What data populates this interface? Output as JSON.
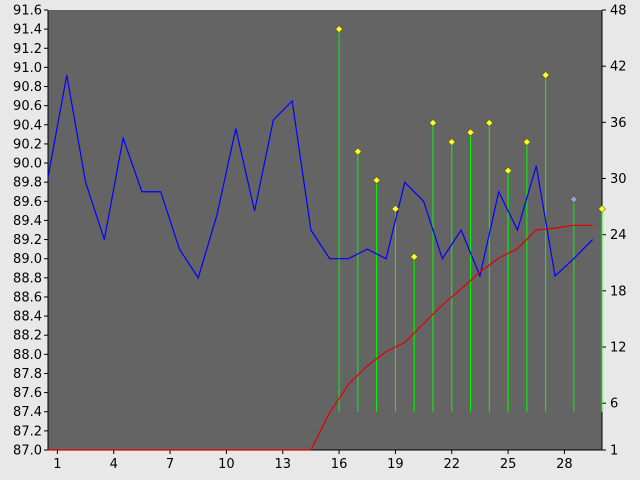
{
  "chart_data": {
    "type": "line",
    "title": "",
    "xlabel": "",
    "ylabel": "",
    "xlim": [
      0.5,
      30
    ],
    "ylim_left": [
      87.0,
      91.6
    ],
    "ylim_right": [
      1,
      48
    ],
    "x_tick_labels": [
      "1",
      "4",
      "7",
      "10",
      "13",
      "16",
      "19",
      "22",
      "25",
      "28"
    ],
    "left_tick_labels": [
      "91.6",
      "91.4",
      "91.2",
      "91.0",
      "90.8",
      "90.6",
      "90.4",
      "90.2",
      "90.0",
      "89.8",
      "89.6",
      "89.4",
      "89.2",
      "89.0",
      "88.8",
      "88.6",
      "88.4",
      "88.2",
      "88.0",
      "87.8",
      "87.6",
      "87.4",
      "87.2",
      "87.0"
    ],
    "right_ticks": [
      1,
      6,
      12,
      18,
      24,
      30,
      36,
      42,
      48
    ],
    "right_tick_labels": [
      "1",
      "6",
      "12",
      "18",
      "24",
      "30",
      "36",
      "42",
      "48"
    ],
    "grid": false,
    "colors": {
      "plot_background": "#646464",
      "page_background": "#e8e8e8",
      "blue_series": "#0000ff",
      "red_series": "#e00000",
      "stems": "#00ff00",
      "markers": "#ffff33",
      "last_marker_highlight": "#9999ff"
    },
    "series": [
      {
        "axis": "left",
        "color": "#0000ff",
        "x": [
          0.5,
          1.5,
          2.5,
          3.5,
          4.5,
          5.5,
          6.5,
          7.5,
          8.5,
          9.5,
          10.5,
          11.5,
          12.5,
          13.5,
          14.5,
          15.5,
          16.5,
          17.5,
          18.5,
          19.5,
          20.5,
          21.5,
          22.5,
          23.5,
          24.5,
          25.5,
          26.5,
          27.5,
          28.5,
          29.5
        ],
        "values": [
          89.85,
          90.92,
          89.8,
          89.2,
          90.26,
          89.7,
          89.7,
          89.1,
          88.8,
          89.46,
          90.36,
          89.5,
          90.45,
          90.65,
          89.3,
          89.0,
          89.0,
          89.1,
          89.0,
          89.8,
          89.6,
          89.0,
          89.3,
          88.82,
          89.7,
          89.3,
          89.97,
          88.82,
          89.0,
          89.2
        ]
      },
      {
        "axis": "right",
        "color": "#e00000",
        "x": [
          0.5,
          14.5,
          15.5,
          16.5,
          17.5,
          18.5,
          19.5,
          20.5,
          21.5,
          22.5,
          23.5,
          24.5,
          25.5,
          26.5,
          27.5,
          28.5,
          29.5
        ],
        "values": [
          1,
          1,
          5,
          8,
          10,
          11.5,
          12.5,
          14.5,
          16.5,
          18.2,
          20,
          21.5,
          22.5,
          24.5,
          24.7,
          25,
          25
        ]
      }
    ],
    "stems": {
      "axis": "left",
      "base": 87.4,
      "x": [
        16,
        17,
        18,
        19,
        20,
        21,
        22,
        23,
        24,
        25,
        26,
        27,
        28.5,
        30
      ],
      "values": [
        91.4,
        90.12,
        89.82,
        89.52,
        89.02,
        90.42,
        90.22,
        90.32,
        90.42,
        89.92,
        90.22,
        90.92,
        89.62,
        89.52
      ],
      "highlighted_index": 12
    }
  }
}
